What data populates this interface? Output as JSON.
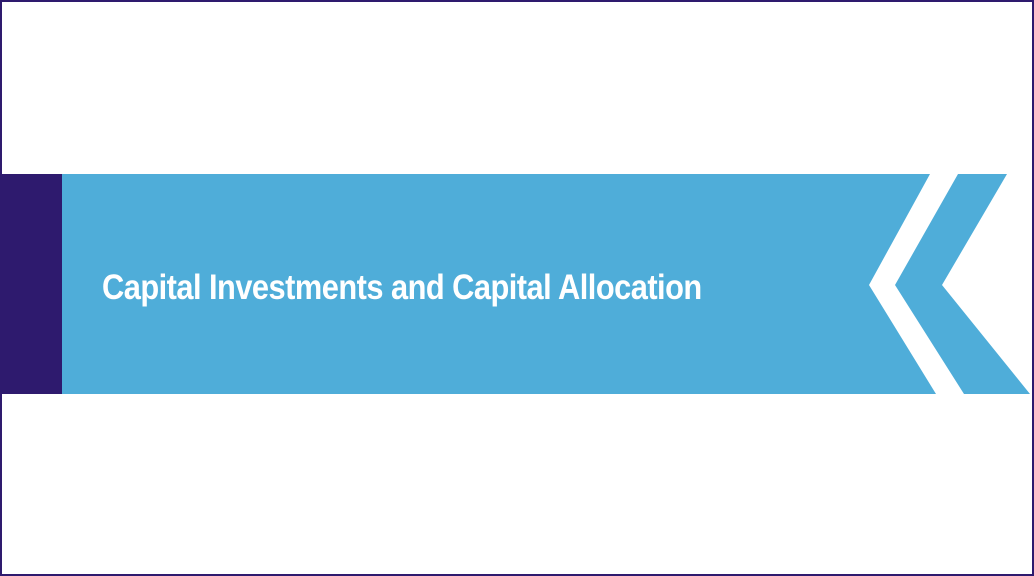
{
  "slide": {
    "title": "Capital Investments and Capital Allocation"
  },
  "colors": {
    "banner": "#4fadd9",
    "accent_bar": "#2e1a6e",
    "frame": "#2e1a6e",
    "background": "#ffffff",
    "title_text": "#ffffff"
  },
  "icons": {
    "chevron": "double-chevron-left-icon"
  }
}
